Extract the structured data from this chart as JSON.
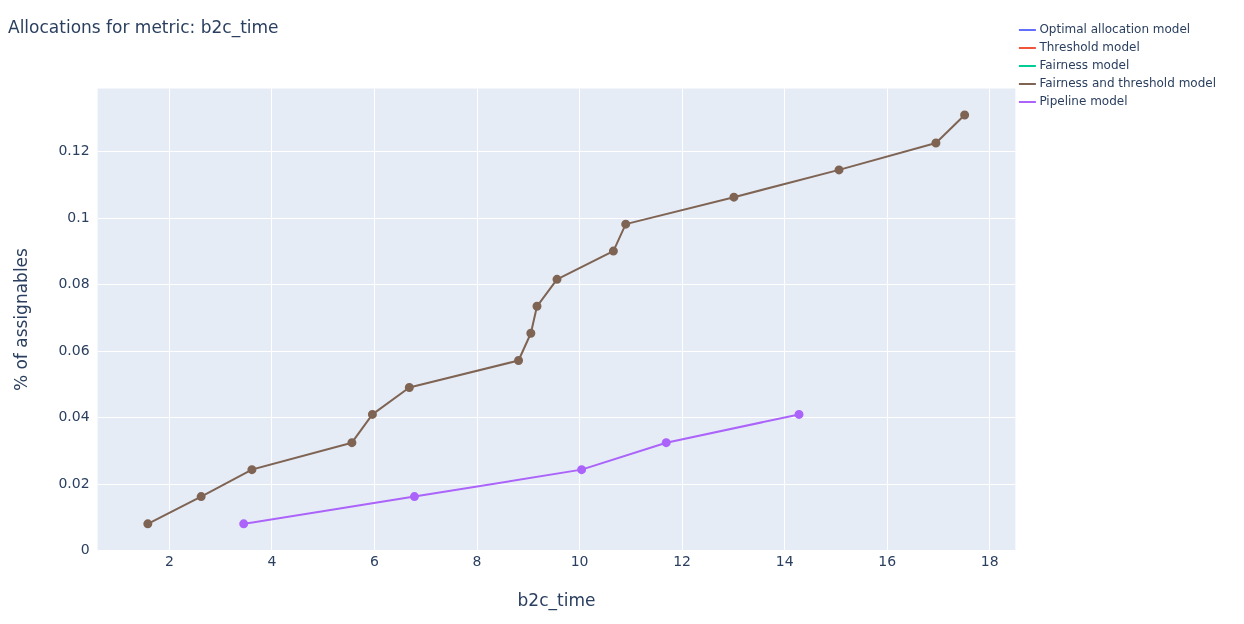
{
  "chart_data": {
    "type": "line",
    "title": "Allocations for metric: b2c_time",
    "xlabel": "b2c_time",
    "ylabel": "% of assignables",
    "xlim": [
      0.6,
      18.5
    ],
    "ylim": [
      0,
      0.139
    ],
    "xticks": [
      2,
      4,
      6,
      8,
      10,
      12,
      14,
      16,
      18
    ],
    "yticks": [
      0,
      0.02,
      0.04,
      0.06,
      0.08,
      0.1,
      0.12
    ],
    "grid": true,
    "legend": "top right",
    "marker": "circle",
    "line_style": "solid",
    "series": [
      {
        "name": "Optimal allocation model",
        "color": "#636efa"
      },
      {
        "name": "Threshold model",
        "color": "#ef553b"
      },
      {
        "name": "Fairness model",
        "color": "#00cc96"
      },
      {
        "name": "Fairness and threshold model",
        "color": "#7f6454",
        "x": [
          1.58,
          2.62,
          3.61,
          5.56,
          5.96,
          6.68,
          8.81,
          9.05,
          9.17,
          9.56,
          10.66,
          10.9,
          13.01,
          15.06,
          16.95,
          17.51
        ],
        "values": [
          0.0081,
          0.0163,
          0.0244,
          0.0325,
          0.041,
          0.0491,
          0.0572,
          0.0654,
          0.0735,
          0.0816,
          0.0901,
          0.0982,
          0.1063,
          0.1145,
          0.1226,
          0.131
        ]
      },
      {
        "name": "Pipeline model",
        "color": "#ab63fa",
        "x": [
          3.45,
          6.78,
          10.04,
          11.69,
          14.28
        ],
        "values": [
          0.0081,
          0.0163,
          0.0244,
          0.0325,
          0.041
        ]
      }
    ]
  }
}
